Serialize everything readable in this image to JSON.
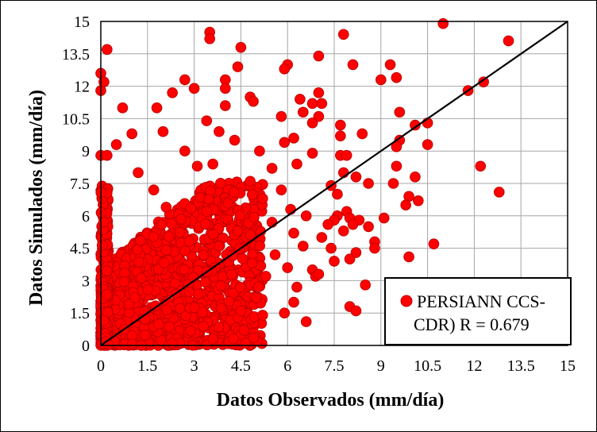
{
  "chart_data": {
    "type": "scatter",
    "title": "",
    "xlabel": "Datos Observados (mm/día)",
    "ylabel": "Datos Simulados (mm/día)",
    "xlim": [
      0,
      15
    ],
    "ylim": [
      0,
      15
    ],
    "xticks": [
      "0",
      "1.5",
      "3",
      "4.5",
      "6",
      "7.5",
      "9",
      "10.5",
      "12",
      "13.5",
      "15"
    ],
    "yticks": [
      "0",
      "1.5",
      "3",
      "4.5",
      "6",
      "7.5",
      "9",
      "10.5",
      "12",
      "13.5",
      "15"
    ],
    "grid": true,
    "legend_position": "bottom-right",
    "marker_color": "#ff0000",
    "marker_edge_color": "#c00000",
    "reference_line": {
      "name": "1:1 line",
      "from": [
        0,
        0
      ],
      "to": [
        15,
        15
      ],
      "color": "#000000"
    },
    "series": [
      {
        "name": "PERSIANN CCS-CDR) R = 0.679",
        "legend_lines": [
          "PERSIANN CCS-",
          "CDR) R = 0.679"
        ],
        "points": [
          [
            3.5,
            14.5
          ],
          [
            3.5,
            14.2
          ],
          [
            11.0,
            14.9
          ],
          [
            7.8,
            14.4
          ],
          [
            13.1,
            14.1
          ],
          [
            4.5,
            13.8
          ],
          [
            0.2,
            13.7
          ],
          [
            7.0,
            13.4
          ],
          [
            6.0,
            13.0
          ],
          [
            8.1,
            13.0
          ],
          [
            9.3,
            13.0
          ],
          [
            4.4,
            12.9
          ],
          [
            5.9,
            12.8
          ],
          [
            0.0,
            12.6
          ],
          [
            9.5,
            12.4
          ],
          [
            9.0,
            12.3
          ],
          [
            2.7,
            12.3
          ],
          [
            4.0,
            12.3
          ],
          [
            0.1,
            12.2
          ],
          [
            12.3,
            12.2
          ],
          [
            3.0,
            11.9
          ],
          [
            4.0,
            11.9
          ],
          [
            11.8,
            11.8
          ],
          [
            0.0,
            11.8
          ],
          [
            2.3,
            11.7
          ],
          [
            7.0,
            11.7
          ],
          [
            4.8,
            11.5
          ],
          [
            4.9,
            11.3
          ],
          [
            6.4,
            11.4
          ],
          [
            6.8,
            11.2
          ],
          [
            7.1,
            11.2
          ],
          [
            0.7,
            11.0
          ],
          [
            1.8,
            11.0
          ],
          [
            4.0,
            11.1
          ],
          [
            9.6,
            10.8
          ],
          [
            5.8,
            10.6
          ],
          [
            6.5,
            10.8
          ],
          [
            7.0,
            10.6
          ],
          [
            6.8,
            10.3
          ],
          [
            7.7,
            10.2
          ],
          [
            10.1,
            10.2
          ],
          [
            10.5,
            10.3
          ],
          [
            0.5,
            9.3
          ],
          [
            8.4,
            9.8
          ],
          [
            7.7,
            9.7
          ],
          [
            6.2,
            9.6
          ],
          [
            9.6,
            9.5
          ],
          [
            9.5,
            9.2
          ],
          [
            10.5,
            9.3
          ],
          [
            0.0,
            8.8
          ],
          [
            0.2,
            8.8
          ],
          [
            7.7,
            8.8
          ],
          [
            7.9,
            8.8
          ],
          [
            6.8,
            8.9
          ],
          [
            12.2,
            8.3
          ],
          [
            9.5,
            8.3
          ],
          [
            7.8,
            8.0
          ],
          [
            8.2,
            7.8
          ],
          [
            9.4,
            7.5
          ],
          [
            10.1,
            7.8
          ],
          [
            7.4,
            7.4
          ],
          [
            8.6,
            7.5
          ],
          [
            12.8,
            7.1
          ],
          [
            7.6,
            7.0
          ],
          [
            9.9,
            6.9
          ],
          [
            10.2,
            6.7
          ],
          [
            9.8,
            6.5
          ],
          [
            7.9,
            6.2
          ],
          [
            8.0,
            5.9
          ],
          [
            6.6,
            6.0
          ],
          [
            7.6,
            6.0
          ],
          [
            7.5,
            5.8
          ],
          [
            8.3,
            5.8
          ],
          [
            7.3,
            5.6
          ],
          [
            8.1,
            5.6
          ],
          [
            8.6,
            5.5
          ],
          [
            9.1,
            5.9
          ],
          [
            7.8,
            5.3
          ],
          [
            7.1,
            5.0
          ],
          [
            8.8,
            4.8
          ],
          [
            10.7,
            4.7
          ],
          [
            7.4,
            4.5
          ],
          [
            8.2,
            4.3
          ],
          [
            8.0,
            4.0
          ],
          [
            8.8,
            4.5
          ],
          [
            9.9,
            4.1
          ],
          [
            7.5,
            3.9
          ],
          [
            6.8,
            3.5
          ],
          [
            6.9,
            3.2
          ],
          [
            8.5,
            2.8
          ],
          [
            7.0,
            3.3
          ],
          [
            8.0,
            1.8
          ],
          [
            8.2,
            1.6
          ],
          [
            6.6,
            1.1
          ],
          [
            6.2,
            2.0
          ],
          [
            5.9,
            1.5
          ],
          [
            4.6,
            0.7
          ],
          [
            2.3,
            0.1
          ],
          [
            1.3,
            0.0
          ],
          [
            3.6,
            0.3
          ],
          [
            5.2,
            1.4
          ],
          [
            4.5,
            1.6
          ],
          [
            3.1,
            8.3
          ],
          [
            1.7,
            7.2
          ],
          [
            2.1,
            6.4
          ],
          [
            1.2,
            8.0
          ],
          [
            2.7,
            9.0
          ],
          [
            3.4,
            10.4
          ],
          [
            3.8,
            9.9
          ],
          [
            1.0,
            9.8
          ],
          [
            2.0,
            9.9
          ],
          [
            3.6,
            8.4
          ],
          [
            4.3,
            9.5
          ],
          [
            5.1,
            9.0
          ],
          [
            5.5,
            8.2
          ],
          [
            5.9,
            9.4
          ],
          [
            6.3,
            8.4
          ],
          [
            4.8,
            7.6
          ],
          [
            5.2,
            6.8
          ],
          [
            5.8,
            7.2
          ],
          [
            6.1,
            6.3
          ],
          [
            5.5,
            5.7
          ],
          [
            6.2,
            5.2
          ],
          [
            6.5,
            4.6
          ],
          [
            5.6,
            4.2
          ],
          [
            6.0,
            3.6
          ],
          [
            5.3,
            3.2
          ],
          [
            6.3,
            2.7
          ],
          [
            5.0,
            2.2
          ],
          [
            4.2,
            3.3
          ],
          [
            3.8,
            4.6
          ],
          [
            4.4,
            5.3
          ],
          [
            3.4,
            6.2
          ]
        ]
      }
    ]
  }
}
